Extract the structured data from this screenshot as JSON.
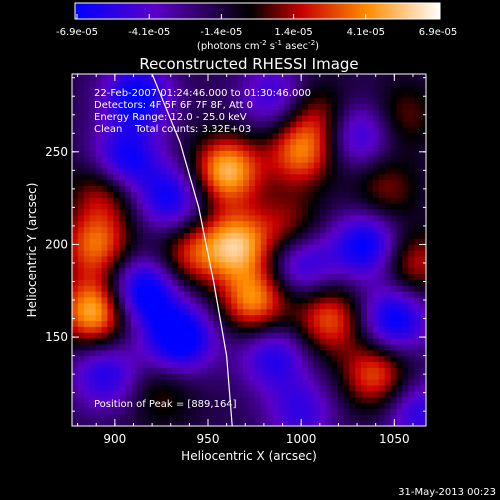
{
  "chart_data": {
    "type": "heatmap",
    "title": "Reconstructed RHESSI Image",
    "xlabel": "Heliocentric X (arcsec)",
    "ylabel": "Heliocentric Y (arcsec)",
    "xlim": [
      877,
      1067
    ],
    "ylim": [
      102,
      292
    ],
    "x_ticks": [
      900,
      950,
      1000,
      1050
    ],
    "y_ticks": [
      150,
      200,
      250
    ],
    "colorbar": {
      "ticks": [
        "-6.9e-05",
        "-4.1e-05",
        "-1.4e-05",
        "1.4e-05",
        "4.1e-05",
        "6.9e-05"
      ],
      "range": [
        -6.9e-05,
        6.9e-05
      ],
      "colors": [
        "#0000ff",
        "#5b00c8",
        "#000000",
        "#c80000",
        "#ff8c00",
        "#ffffff"
      ]
    },
    "units": "(photons cm^-2 s^-1 asec^-2)",
    "units_parts": [
      "(photons cm",
      "-2",
      " s",
      "-1",
      " asec",
      "-2",
      ")"
    ],
    "annotations": [
      "22-Feb-2007 01:24:46.000 to 01:30:46.000",
      "Detectors: 4F 5F 6F 7F 8F, Att 0",
      "Energy Range: 12.0 - 25.0 keV",
      "Clean    Total counts: 3.32E+03"
    ],
    "peak_label": "Position of Peak = [889,164]",
    "timestamp": "31-May-2013 00:23",
    "limb_curve": [
      [
        920,
        292
      ],
      [
        935,
        255
      ],
      [
        945,
        220
      ],
      [
        953,
        180
      ],
      [
        960,
        140
      ],
      [
        963,
        102
      ]
    ],
    "peaks": [
      {
        "x": 960,
        "y": 240,
        "v": 1.0
      },
      {
        "x": 965,
        "y": 200,
        "v": 0.95
      },
      {
        "x": 975,
        "y": 170,
        "v": 0.85
      },
      {
        "x": 940,
        "y": 195,
        "v": 0.55
      },
      {
        "x": 889,
        "y": 164,
        "v": 1.0
      },
      {
        "x": 890,
        "y": 200,
        "v": 0.75
      },
      {
        "x": 895,
        "y": 230,
        "v": 0.55
      },
      {
        "x": 1000,
        "y": 250,
        "v": 0.75
      },
      {
        "x": 993,
        "y": 210,
        "v": 0.45
      },
      {
        "x": 1015,
        "y": 160,
        "v": 0.7
      },
      {
        "x": 1040,
        "y": 130,
        "v": 0.7
      },
      {
        "x": 1045,
        "y": 230,
        "v": 0.4
      },
      {
        "x": 1060,
        "y": 190,
        "v": 0.55
      },
      {
        "x": 1010,
        "y": 270,
        "v": 0.45
      },
      {
        "x": 925,
        "y": 120,
        "v": 0.3
      },
      {
        "x": 1055,
        "y": 270,
        "v": 0.35
      },
      {
        "x": 912,
        "y": 280,
        "v": -0.8
      },
      {
        "x": 915,
        "y": 175,
        "v": -0.9
      },
      {
        "x": 935,
        "y": 150,
        "v": -0.95
      },
      {
        "x": 905,
        "y": 245,
        "v": -0.8
      },
      {
        "x": 930,
        "y": 225,
        "v": -0.7
      },
      {
        "x": 1000,
        "y": 190,
        "v": -0.6
      },
      {
        "x": 1030,
        "y": 260,
        "v": -0.6
      },
      {
        "x": 1035,
        "y": 200,
        "v": -0.8
      },
      {
        "x": 1050,
        "y": 160,
        "v": -0.8
      },
      {
        "x": 985,
        "y": 140,
        "v": -0.6
      },
      {
        "x": 895,
        "y": 130,
        "v": -0.6
      },
      {
        "x": 985,
        "y": 280,
        "v": -0.5
      },
      {
        "x": 1000,
        "y": 110,
        "v": -0.5
      },
      {
        "x": 1063,
        "y": 110,
        "v": -0.55
      }
    ]
  }
}
